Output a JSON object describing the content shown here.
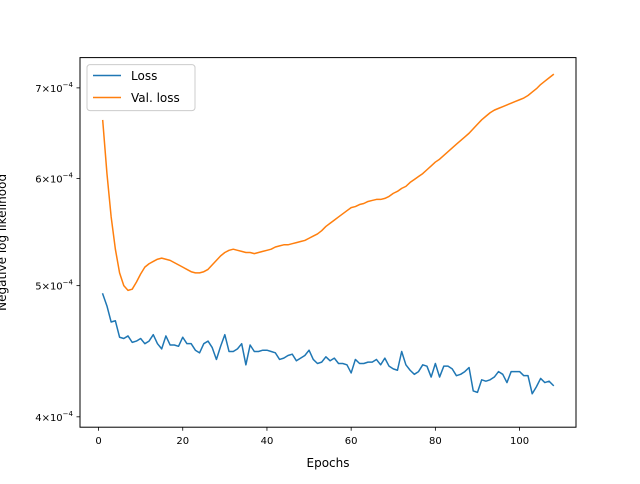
{
  "chart_data": {
    "type": "line",
    "title": "",
    "xlabel": "Epochs",
    "ylabel": "Negative log likelihood",
    "xlim": [
      -4.4,
      113.4
    ],
    "ylim": [
      0.000393,
      0.000737
    ],
    "yscale": "log",
    "grid": false,
    "legend_position": "top-left",
    "x_ticks": [
      0,
      20,
      40,
      60,
      80,
      100
    ],
    "x_tick_labels": [
      "0",
      "20",
      "40",
      "60",
      "80",
      "100"
    ],
    "y_ticks": [
      0.0004,
      0.0005,
      0.0006,
      0.0007
    ],
    "y_tick_labels": [
      {
        "mantissa": "4",
        "exponent": "−4"
      },
      {
        "mantissa": "5",
        "exponent": "−4"
      },
      {
        "mantissa": "6",
        "exponent": "−4"
      },
      {
        "mantissa": "7",
        "exponent": "−4"
      }
    ],
    "series": [
      {
        "name": "Loss",
        "color": "#1f77b4",
        "x": [
          1,
          2,
          3,
          4,
          5,
          6,
          7,
          8,
          9,
          10,
          11,
          12,
          13,
          14,
          15,
          16,
          17,
          18,
          19,
          20,
          21,
          22,
          23,
          24,
          25,
          26,
          27,
          28,
          29,
          30,
          31,
          32,
          33,
          34,
          35,
          36,
          37,
          38,
          39,
          40,
          41,
          42,
          43,
          44,
          45,
          46,
          47,
          48,
          49,
          50,
          51,
          52,
          53,
          54,
          55,
          56,
          57,
          58,
          59,
          60,
          61,
          62,
          63,
          64,
          65,
          66,
          67,
          68,
          69,
          70,
          71,
          72,
          73,
          74,
          75,
          76,
          77,
          78,
          79,
          80,
          81,
          82,
          83,
          84,
          85,
          86,
          87,
          88,
          89,
          90,
          91,
          92,
          93,
          94,
          95,
          96,
          97,
          98,
          99,
          100,
          101,
          102,
          103,
          104,
          105,
          106,
          107,
          108
        ],
        "values": [
          0.000493,
          0.000483,
          0.00047,
          0.000471,
          0.000458,
          0.000457,
          0.000459,
          0.000454,
          0.000455,
          0.000457,
          0.000453,
          0.000455,
          0.00046,
          0.000453,
          0.000449,
          0.000459,
          0.000452,
          0.000452,
          0.000451,
          0.000458,
          0.000453,
          0.000453,
          0.000448,
          0.000446,
          0.000453,
          0.000455,
          0.00045,
          0.000441,
          0.000451,
          0.00046,
          0.000447,
          0.000447,
          0.000449,
          0.000453,
          0.000437,
          0.000452,
          0.000447,
          0.000447,
          0.000448,
          0.000448,
          0.000447,
          0.000446,
          0.000441,
          0.000442,
          0.000444,
          0.000445,
          0.00044,
          0.000442,
          0.000444,
          0.000448,
          0.000441,
          0.000438,
          0.000439,
          0.000443,
          0.00044,
          0.000442,
          0.000438,
          0.000438,
          0.000437,
          0.000431,
          0.000441,
          0.000438,
          0.000438,
          0.000439,
          0.000439,
          0.000441,
          0.000437,
          0.000442,
          0.000436,
          0.000434,
          0.000433,
          0.000447,
          0.000437,
          0.000433,
          0.00043,
          0.000432,
          0.000437,
          0.000436,
          0.000428,
          0.000438,
          0.000428,
          0.000436,
          0.000436,
          0.000434,
          0.000429,
          0.00043,
          0.000432,
          0.000435,
          0.000418,
          0.000417,
          0.000426,
          0.000425,
          0.000426,
          0.000428,
          0.000432,
          0.00043,
          0.000424,
          0.000432,
          0.000432,
          0.000432,
          0.000429,
          0.000429,
          0.000416,
          0.000421,
          0.000427,
          0.000424,
          0.000425,
          0.000422
        ]
      },
      {
        "name": "Val. loss",
        "color": "#ff7f0e",
        "x": [
          1,
          2,
          3,
          4,
          5,
          6,
          7,
          8,
          9,
          10,
          11,
          12,
          13,
          14,
          15,
          16,
          17,
          18,
          19,
          20,
          21,
          22,
          23,
          24,
          25,
          26,
          27,
          28,
          29,
          30,
          31,
          32,
          33,
          34,
          35,
          36,
          37,
          38,
          39,
          40,
          41,
          42,
          43,
          44,
          45,
          46,
          47,
          48,
          49,
          50,
          51,
          52,
          53,
          54,
          55,
          56,
          57,
          58,
          59,
          60,
          61,
          62,
          63,
          64,
          65,
          66,
          67,
          68,
          69,
          70,
          71,
          72,
          73,
          74,
          75,
          76,
          77,
          78,
          79,
          80,
          81,
          82,
          83,
          84,
          85,
          86,
          87,
          88,
          89,
          90,
          91,
          92,
          93,
          94,
          95,
          96,
          97,
          98,
          99,
          100,
          101,
          102,
          103,
          104,
          105,
          106,
          107,
          108
        ],
        "values": [
          0.000662,
          0.000605,
          0.000562,
          0.000532,
          0.000511,
          0.0005,
          0.000496,
          0.000497,
          0.000503,
          0.00051,
          0.000516,
          0.000519,
          0.000521,
          0.000523,
          0.000524,
          0.000523,
          0.000522,
          0.00052,
          0.000518,
          0.000516,
          0.000514,
          0.000512,
          0.000511,
          0.000511,
          0.000512,
          0.000514,
          0.000518,
          0.000522,
          0.000526,
          0.000529,
          0.000531,
          0.000532,
          0.000531,
          0.00053,
          0.000529,
          0.000529,
          0.000528,
          0.000529,
          0.00053,
          0.000531,
          0.000532,
          0.000534,
          0.000535,
          0.000536,
          0.000536,
          0.000537,
          0.000538,
          0.000539,
          0.00054,
          0.000542,
          0.000544,
          0.000546,
          0.000549,
          0.000553,
          0.000556,
          0.000559,
          0.000562,
          0.000565,
          0.000568,
          0.000571,
          0.000572,
          0.000574,
          0.000575,
          0.000577,
          0.000578,
          0.000579,
          0.000579,
          0.00058,
          0.000582,
          0.000585,
          0.000587,
          0.00059,
          0.000592,
          0.000596,
          0.000599,
          0.000602,
          0.000605,
          0.000609,
          0.000613,
          0.000617,
          0.00062,
          0.000624,
          0.000628,
          0.000632,
          0.000636,
          0.00064,
          0.000644,
          0.000648,
          0.000653,
          0.000658,
          0.000663,
          0.000667,
          0.000671,
          0.000674,
          0.000676,
          0.000678,
          0.00068,
          0.000682,
          0.000684,
          0.000686,
          0.000688,
          0.000691,
          0.000695,
          0.000699,
          0.000704,
          0.000708,
          0.000712,
          0.000716
        ]
      }
    ]
  }
}
